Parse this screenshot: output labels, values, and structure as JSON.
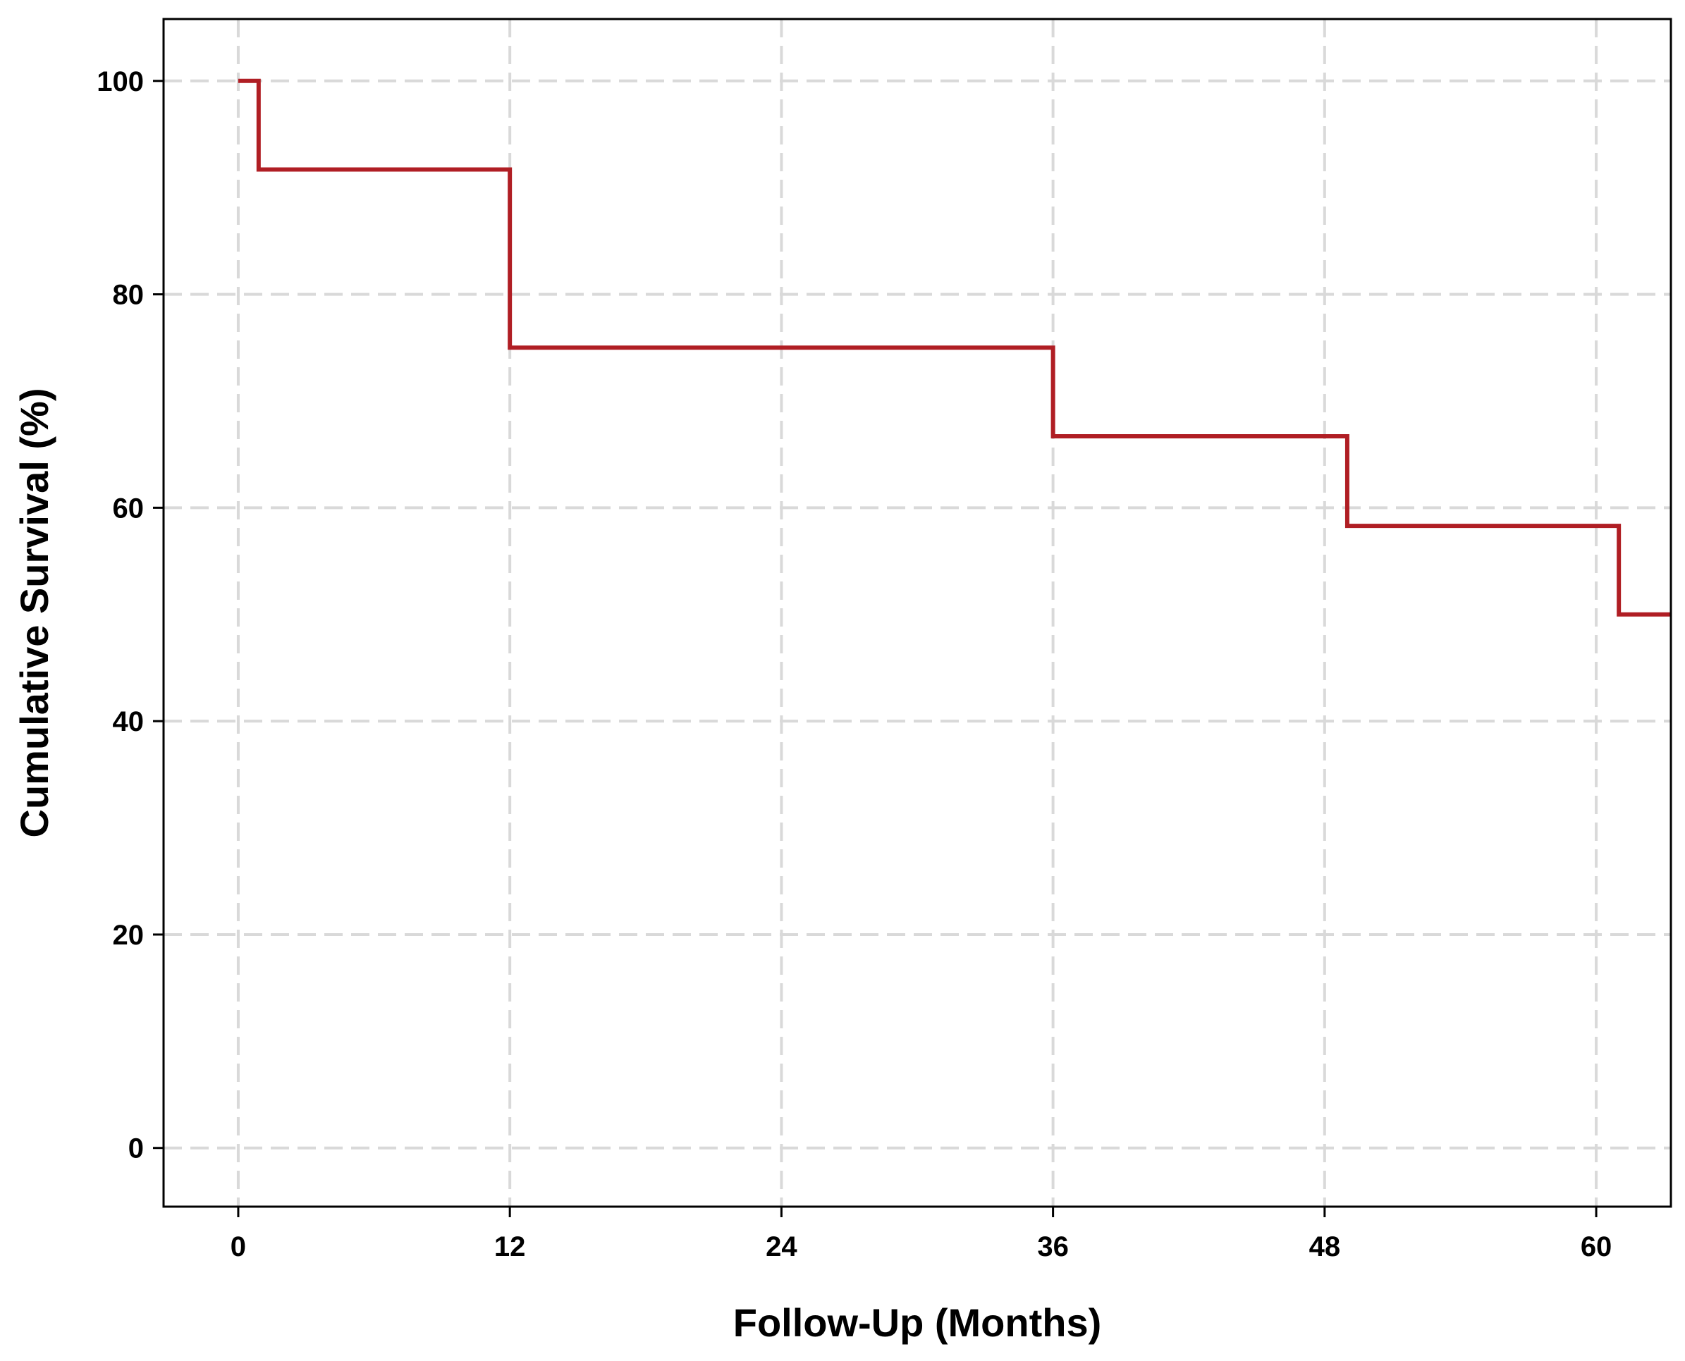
{
  "chart_data": {
    "type": "line",
    "step": true,
    "title": "",
    "xlabel": "Follow-Up (Months)",
    "ylabel": "Cumulative Survival (%)",
    "xlim": [
      -3.3,
      63.3
    ],
    "ylim": [
      -5.5,
      105.8
    ],
    "x_ticks": [
      0,
      12,
      24,
      36,
      48,
      60
    ],
    "y_ticks": [
      0,
      20,
      40,
      60,
      80,
      100
    ],
    "grid": true,
    "line_color": "#b01e24",
    "grid_color": "#d9d9d9",
    "series": [
      {
        "x": [
          0,
          0.9,
          12,
          36,
          49,
          61,
          63.3
        ],
        "y": [
          100,
          91.7,
          75.0,
          66.7,
          58.3,
          50.0,
          50.0
        ]
      }
    ]
  }
}
